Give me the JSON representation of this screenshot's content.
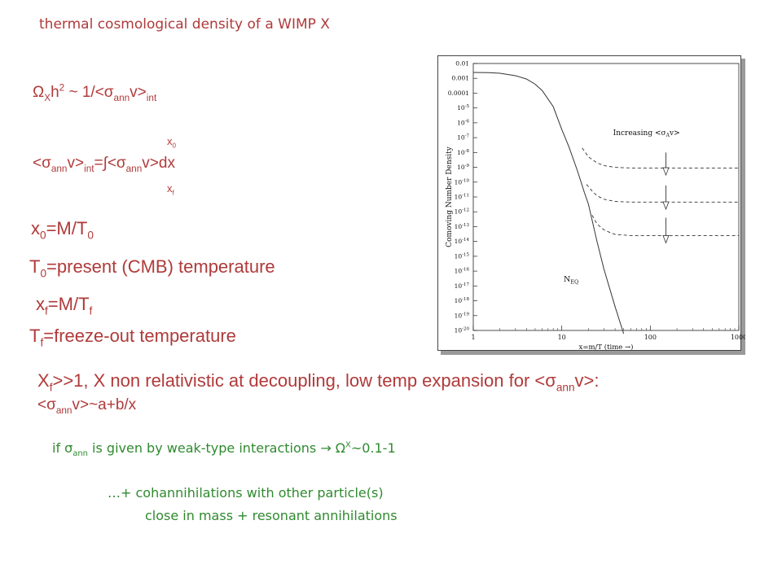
{
  "slide": {
    "title": "thermal cosmological density of a WIMP X",
    "omega": {
      "a": "Ω",
      "b": "X",
      "c": "h",
      "d": "2",
      "e": " ~ 1/<σ",
      "f": "ann",
      "g": "v>",
      "h": "int"
    },
    "int_top": {
      "a": "x",
      "b": "0"
    },
    "integral": {
      "a": "<σ",
      "b": "ann",
      "c": "v>",
      "d": "int",
      "e": "=∫<σ",
      "f": "ann",
      "g": "v>dx"
    },
    "int_bottom": {
      "a": "x",
      "b": "f"
    },
    "x0": {
      "a": "x",
      "b": "0",
      "c": "=M/T",
      "d": "0"
    },
    "t0": {
      "a": "T",
      "b": "0",
      "c": "=present (CMB) temperature"
    },
    "xf": {
      "a": "x",
      "b": "f",
      "c": "=M/T",
      "d": "f"
    },
    "tf": {
      "a": "T",
      "b": "f",
      "c": "=freeze-out temperature"
    },
    "line1": {
      "a": "X",
      "b": "f",
      "c": ">>1, X non relativistic at decoupling, low temp expansion for <σ",
      "d": "ann",
      "e": "v>:"
    },
    "line2": {
      "a": "<σ",
      "b": "ann",
      "c": "v>~a+b/x"
    },
    "weak": {
      "a": "if σ",
      "b": "ann",
      "c": " is given by weak-type interactions → Ω",
      "d": "X",
      "e": "~0.1-1"
    },
    "coann1": "…+ cohannihilations with other particle(s)",
    "coann2": "close in mass + resonant annihilations"
  },
  "chart_data": {
    "type": "line",
    "xscale": "log",
    "yscale": "log",
    "xlim": [
      1,
      1000
    ],
    "ylim": [
      1e-20,
      0.01
    ],
    "xlabel": "x=m/T (time →)",
    "ylabel": "Comoving Number Density",
    "x_ticks": [
      "1",
      "10",
      "100",
      "1000"
    ],
    "y_ticks_plain": [
      "0.01",
      "0.001",
      "0.0001"
    ],
    "y_ticks_exp": [
      "-5",
      "-6",
      "-7",
      "-8",
      "-9",
      "-10",
      "-11",
      "-12",
      "-13",
      "-14",
      "-15",
      "-16",
      "-17",
      "-18",
      "-19",
      "-20"
    ],
    "y_tick_base": "10",
    "annotation": "Increasing <σ",
    "annotation_sub": "A",
    "annotation_tail": "v>",
    "neq_label": "N",
    "neq_sub": "EQ",
    "series": [
      {
        "style": "solid",
        "x": [
          1,
          1.5,
          2,
          3,
          4,
          5,
          6,
          8,
          10,
          12,
          15,
          18,
          20,
          25,
          30,
          40,
          50
        ],
        "y": [
          0.0025,
          0.0024,
          0.0022,
          0.0015,
          0.0009,
          0.0004,
          0.00015,
          1.25e-05,
          3.5e-07,
          2.5e-08,
          6e-10,
          2e-11,
          3.2e-12,
          1e-14,
          1.3e-16,
          4e-19,
          6e-21
        ]
      },
      {
        "style": "dashed",
        "x": [
          17,
          20,
          25,
          30,
          40,
          60,
          100,
          200,
          500,
          1000
        ],
        "y": [
          2e-08,
          5e-09,
          2e-09,
          1.3e-09,
          1e-09,
          9e-10,
          9e-10,
          9e-10,
          9e-10,
          9e-10
        ]
      },
      {
        "style": "dashed",
        "x": [
          19,
          22,
          25,
          30,
          40,
          60,
          100,
          200,
          500,
          1000
        ],
        "y": [
          7e-11,
          2.5e-11,
          1.2e-11,
          7e-12,
          5e-12,
          4.5e-12,
          4.5e-12,
          4.5e-12,
          4.5e-12,
          4.5e-12
        ]
      },
      {
        "style": "dashed",
        "x": [
          22,
          25,
          30,
          35,
          40,
          60,
          100,
          200,
          500,
          1000
        ],
        "y": [
          6e-13,
          1.5e-13,
          6e-14,
          4e-14,
          3e-14,
          2.5e-14,
          2.5e-14,
          2.5e-14,
          2.5e-14,
          2.5e-14
        ]
      }
    ]
  }
}
